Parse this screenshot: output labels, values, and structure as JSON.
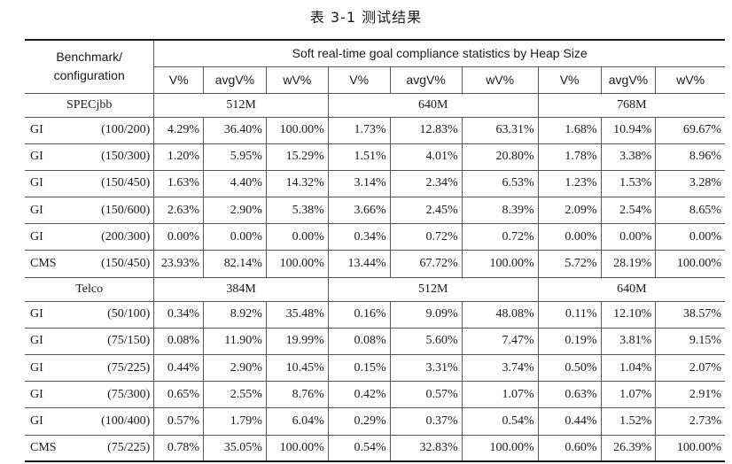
{
  "caption": "表 3-1   测试结果",
  "header": {
    "benchmark_line1": "Benchmark/",
    "benchmark_line2": "configuration",
    "group_title": "Soft real-time goal compliance statistics by Heap Size",
    "columns": [
      "V%",
      "avgV%",
      "wV%",
      "V%",
      "avgV%",
      "wV%",
      "V%",
      "avgV%",
      "wV%"
    ]
  },
  "sections": [
    {
      "name": "SPECjbb",
      "heaps": [
        "512M",
        "640M",
        "768M"
      ],
      "rows": [
        {
          "gc": "GI",
          "config": "(100/200)",
          "values": [
            "4.29%",
            "36.40%",
            "100.00%",
            "1.73%",
            "12.83%",
            "63.31%",
            "1.68%",
            "10.94%",
            "69.67%"
          ]
        },
        {
          "gc": "GI",
          "config": "(150/300)",
          "values": [
            "1.20%",
            "5.95%",
            "15.29%",
            "1.51%",
            "4.01%",
            "20.80%",
            "1.78%",
            "3.38%",
            "8.96%"
          ]
        },
        {
          "gc": "GI",
          "config": "(150/450)",
          "values": [
            "1.63%",
            "4.40%",
            "14.32%",
            "3.14%",
            "2.34%",
            "6.53%",
            "1.23%",
            "1.53%",
            "3.28%"
          ]
        },
        {
          "gc": "GI",
          "config": "(150/600)",
          "values": [
            "2.63%",
            "2.90%",
            "5.38%",
            "3.66%",
            "2.45%",
            "8.39%",
            "2.09%",
            "2.54%",
            "8.65%"
          ]
        },
        {
          "gc": "GI",
          "config": "(200/300)",
          "values": [
            "0.00%",
            "0.00%",
            "0.00%",
            "0.34%",
            "0.72%",
            "0.72%",
            "0.00%",
            "0.00%",
            "0.00%"
          ]
        },
        {
          "gc": "CMS",
          "config": "(150/450)",
          "values": [
            "23.93%",
            "82.14%",
            "100.00%",
            "13.44%",
            "67.72%",
            "100.00%",
            "5.72%",
            "28.19%",
            "100.00%"
          ]
        }
      ]
    },
    {
      "name": "Telco",
      "heaps": [
        "384M",
        "512M",
        "640M"
      ],
      "rows": [
        {
          "gc": "GI",
          "config": "(50/100)",
          "values": [
            "0.34%",
            "8.92%",
            "35.48%",
            "0.16%",
            "9.09%",
            "48.08%",
            "0.11%",
            "12.10%",
            "38.57%"
          ]
        },
        {
          "gc": "GI",
          "config": "(75/150)",
          "values": [
            "0.08%",
            "11.90%",
            "19.99%",
            "0.08%",
            "5.60%",
            "7.47%",
            "0.19%",
            "3.81%",
            "9.15%"
          ]
        },
        {
          "gc": "GI",
          "config": "(75/225)",
          "values": [
            "0.44%",
            "2.90%",
            "10.45%",
            "0.15%",
            "3.31%",
            "3.74%",
            "0.50%",
            "1.04%",
            "2.07%"
          ]
        },
        {
          "gc": "GI",
          "config": "(75/300)",
          "values": [
            "0.65%",
            "2.55%",
            "8.76%",
            "0.42%",
            "0.57%",
            "1.07%",
            "0.63%",
            "1.07%",
            "2.91%"
          ]
        },
        {
          "gc": "GI",
          "config": "(100/400)",
          "values": [
            "0.57%",
            "1.79%",
            "6.04%",
            "0.29%",
            "0.37%",
            "0.54%",
            "0.44%",
            "1.52%",
            "2.73%"
          ]
        },
        {
          "gc": "CMS",
          "config": "(75/225)",
          "values": [
            "0.78%",
            "35.05%",
            "100.00%",
            "0.54%",
            "32.83%",
            "100.00%",
            "0.60%",
            "26.39%",
            "100.00%"
          ]
        }
      ]
    }
  ]
}
